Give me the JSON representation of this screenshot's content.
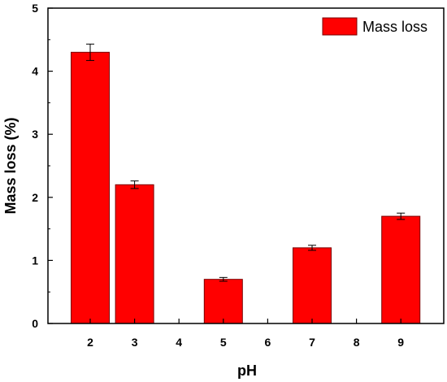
{
  "chart_data": {
    "type": "bar",
    "categories": [
      "2",
      "3",
      "4",
      "5",
      "6",
      "7",
      "8",
      "9"
    ],
    "series": [
      {
        "name": "Mass loss",
        "values": [
          4.3,
          2.2,
          null,
          0.7,
          null,
          1.2,
          null,
          1.7
        ],
        "errors": [
          0.13,
          0.06,
          null,
          0.03,
          null,
          0.04,
          null,
          0.05
        ]
      }
    ],
    "xlabel": "pH",
    "ylabel": "Mass loss (%)",
    "ylim": [
      0,
      5
    ],
    "yticks": [
      "0",
      "1",
      "2",
      "3",
      "4",
      "5"
    ],
    "legend_position": "top-right",
    "grid": false,
    "colors": {
      "bar_fill": "#ff0000",
      "bar_stroke": "#7a0000",
      "axis": "#000000"
    }
  }
}
